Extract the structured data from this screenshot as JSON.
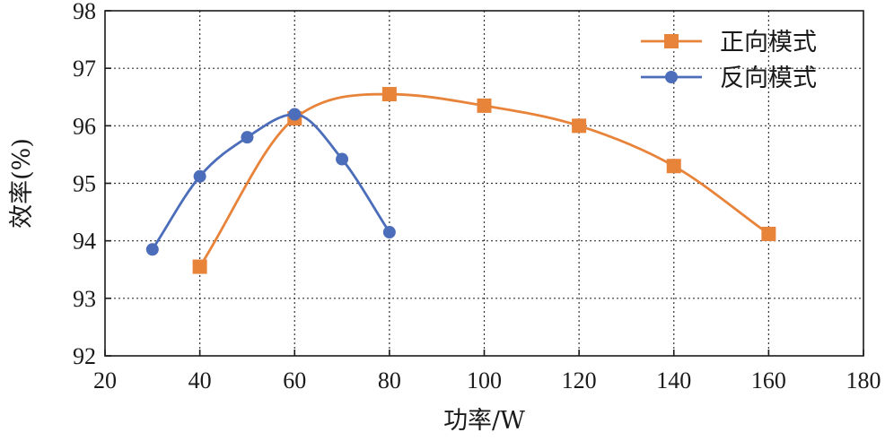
{
  "chart_data": {
    "type": "line",
    "title": "",
    "xlabel": "功率/W",
    "ylabel": "效率(%)",
    "xlim": [
      20,
      180
    ],
    "ylim": [
      92,
      98
    ],
    "xticks": [
      20,
      40,
      60,
      80,
      100,
      120,
      140,
      160,
      180
    ],
    "yticks": [
      92,
      93,
      94,
      95,
      96,
      97,
      98
    ],
    "grid": true,
    "legend_position": "top-right",
    "series": [
      {
        "name": "正向模式",
        "marker": "square",
        "color": "#E8833A",
        "x": [
          40,
          60,
          80,
          100,
          120,
          140,
          160
        ],
        "y": [
          93.55,
          96.13,
          96.55,
          96.35,
          96.0,
          95.3,
          94.12
        ]
      },
      {
        "name": "反向模式",
        "marker": "circle",
        "color": "#4C6DBA",
        "x": [
          30,
          40,
          50,
          60,
          70,
          80
        ],
        "y": [
          93.85,
          95.12,
          95.8,
          96.2,
          95.42,
          94.15
        ]
      }
    ]
  }
}
